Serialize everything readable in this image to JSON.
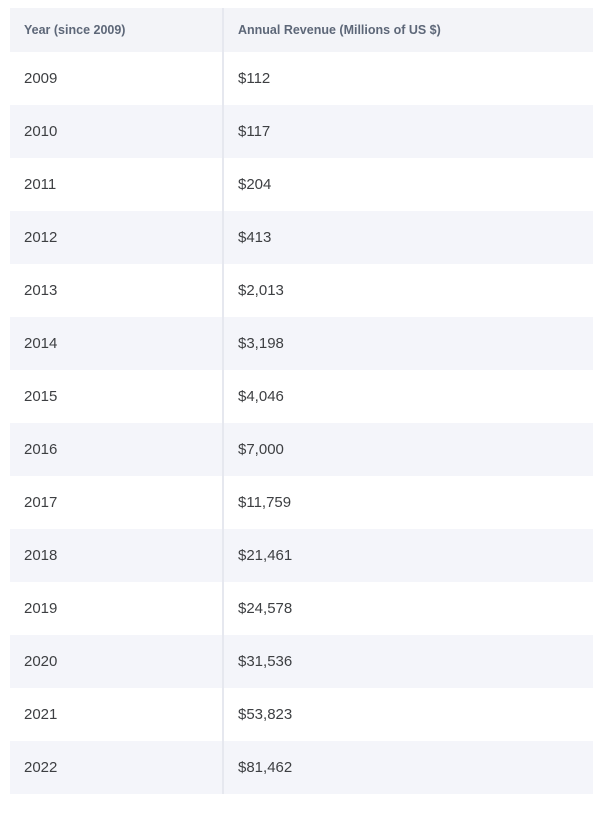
{
  "table": {
    "columns": [
      {
        "label": "Year (since 2009)"
      },
      {
        "label": "Annual Revenue (Millions of US $)"
      }
    ],
    "rows": [
      {
        "year": "2009",
        "revenue": "$112"
      },
      {
        "year": "2010",
        "revenue": "$117"
      },
      {
        "year": "2011",
        "revenue": "$204"
      },
      {
        "year": "2012",
        "revenue": "$413"
      },
      {
        "year": "2013",
        "revenue": "$2,013"
      },
      {
        "year": "2014",
        "revenue": "$3,198"
      },
      {
        "year": "2015",
        "revenue": "$4,046"
      },
      {
        "year": "2016",
        "revenue": "$7,000"
      },
      {
        "year": "2017",
        "revenue": "$11,759"
      },
      {
        "year": "2018",
        "revenue": "$21,461"
      },
      {
        "year": "2019",
        "revenue": "$24,578"
      },
      {
        "year": "2020",
        "revenue": "$31,536"
      },
      {
        "year": "2021",
        "revenue": "$53,823"
      },
      {
        "year": "2022",
        "revenue": "$81,462"
      }
    ]
  },
  "colors": {
    "page_background": "#ffffff",
    "header_background": "#f3f4f8",
    "stripe_background": "#f4f5fa",
    "header_text": "#5d6778",
    "body_text": "#3d3f42",
    "column_divider": "#e6e8ef"
  },
  "chart_data": {
    "type": "table",
    "title": "",
    "columns": [
      "Year (since 2009)",
      "Annual Revenue (Millions of US $)"
    ],
    "categories": [
      "2009",
      "2010",
      "2011",
      "2012",
      "2013",
      "2014",
      "2015",
      "2016",
      "2017",
      "2018",
      "2019",
      "2020",
      "2021",
      "2022"
    ],
    "values": [
      112,
      117,
      204,
      413,
      2013,
      3198,
      4046,
      7000,
      11759,
      21461,
      24578,
      31536,
      53823,
      81462
    ],
    "value_unit": "Millions of US $",
    "layout": {
      "striped_rows": true,
      "grid": "vertical-rule-only",
      "legend": "none"
    }
  }
}
